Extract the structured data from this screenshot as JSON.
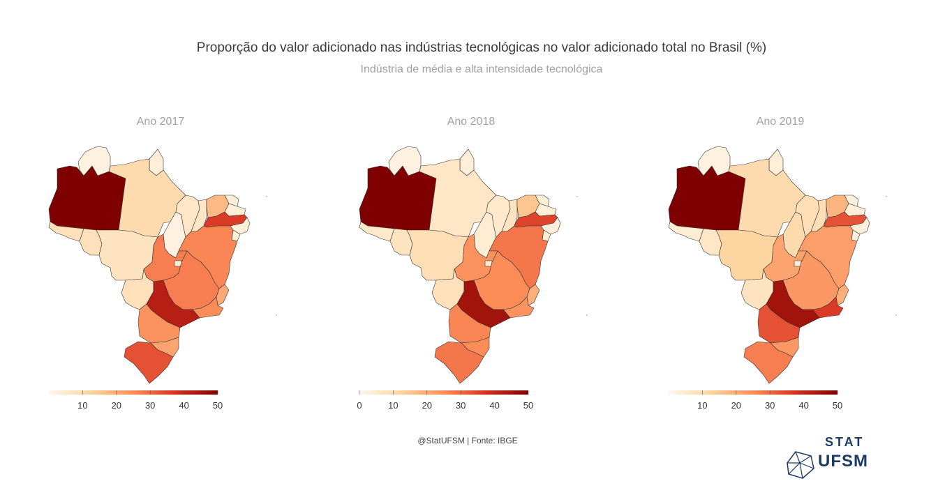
{
  "title": "Proporção do valor adicionado nas indústrias tecnológicas no valor adicionado total no Brasil (%)",
  "subtitle": "Indústria de média e alta intensidade tecnológica",
  "caption": "@StatUFSM  |  Fonte: IBGE",
  "logo": {
    "top": "STAT",
    "bottom": "UFSM"
  },
  "scale": {
    "domain": [
      0,
      50
    ],
    "colors": [
      "#fff7ec",
      "#fdd49e",
      "#fc8d59",
      "#d7301f",
      "#7f0000"
    ]
  },
  "chart_data": [
    {
      "type": "choropleth",
      "title": "Ano 2017",
      "legend_ticks": [
        "10",
        "20",
        "30",
        "40",
        "50"
      ],
      "values": {
        "AC": 8,
        "AM": 51,
        "RR": 2,
        "RO": 8,
        "PA": 10,
        "AP": 3,
        "TO": 2,
        "MA": 6,
        "PI": 6,
        "CE": 17,
        "RN": 3,
        "PB": 3,
        "PE": 36,
        "AL": 3,
        "SE": 3,
        "BA": 26,
        "MT": 7,
        "MS": 8,
        "GO": 27,
        "DF": 4,
        "MG": 27,
        "ES": 20,
        "RJ": 25,
        "SP": 42,
        "PR": 24,
        "SC": 21,
        "RS": 33
      }
    },
    {
      "type": "choropleth",
      "title": "Ano 2018",
      "legend_ticks": [
        "0",
        "10",
        "20",
        "30",
        "40",
        "50"
      ],
      "values": {
        "AC": 5,
        "AM": 51,
        "RR": 2,
        "RO": 7,
        "PA": 6,
        "AP": 3,
        "TO": 4,
        "MA": 5,
        "PI": 7,
        "CE": 15,
        "RN": 3,
        "PB": 3,
        "PE": 35,
        "AL": 3,
        "SE": 3,
        "BA": 28,
        "MT": 9,
        "MS": 8,
        "GO": 24,
        "DF": 4,
        "MG": 25,
        "ES": 19,
        "RJ": 24,
        "SP": 45,
        "PR": 26,
        "SC": 25,
        "RS": 28
      }
    },
    {
      "type": "choropleth",
      "title": "Ano 2019",
      "legend_ticks": [
        "10",
        "20",
        "30",
        "40",
        "50"
      ],
      "values": {
        "AC": 4,
        "AM": 51,
        "RR": 2,
        "RO": 6,
        "PA": 10,
        "AP": 3,
        "TO": 10,
        "MA": 9,
        "PI": 9,
        "CE": 18,
        "RN": 3,
        "PB": 3,
        "PE": 33,
        "AL": 3,
        "SE": 3,
        "BA": 22,
        "MT": 12,
        "MS": 7,
        "GO": 21,
        "DF": 4,
        "MG": 23,
        "ES": 19,
        "RJ": 36,
        "SP": 45,
        "PR": 33,
        "SC": 23,
        "RS": 27
      }
    }
  ]
}
